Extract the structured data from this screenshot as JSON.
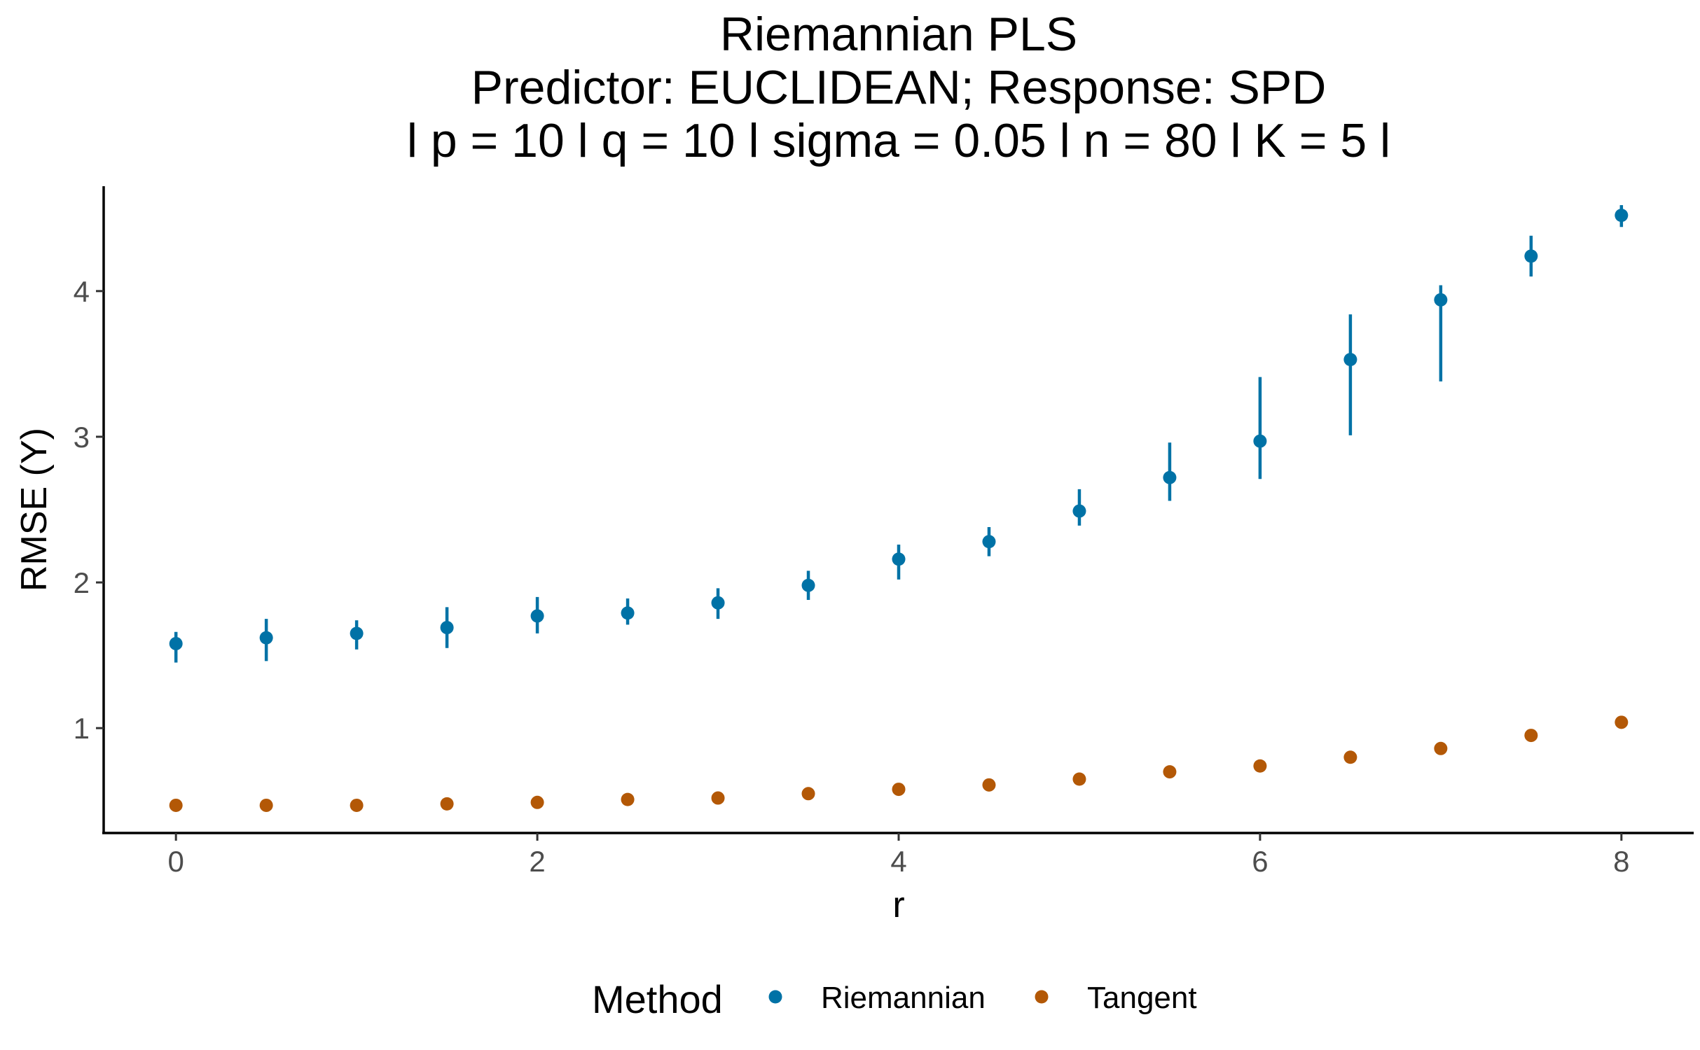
{
  "chart_data": {
    "type": "scatter",
    "title_lines": [
      "Riemannian PLS",
      "Predictor: EUCLIDEAN; Response: SPD",
      "l p = 10 l q = 10 l sigma = 0.05 l n = 80 l K = 5 l"
    ],
    "xlabel": "r",
    "ylabel": "RMSE (Y)",
    "xlim": [
      -0.4,
      8.4
    ],
    "ylim": [
      0.28,
      4.72
    ],
    "xticks": [
      0,
      2,
      4,
      6,
      8
    ],
    "yticks": [
      1,
      2,
      3,
      4
    ],
    "grid": false,
    "legend": {
      "title": "Method",
      "position": "bottom"
    },
    "series": [
      {
        "name": "Riemannian",
        "color": "#0072A6",
        "points": [
          {
            "x": 0,
            "y": 1.58,
            "lo": 1.45,
            "hi": 1.66
          },
          {
            "x": 0.5,
            "y": 1.62,
            "lo": 1.46,
            "hi": 1.75
          },
          {
            "x": 1,
            "y": 1.65,
            "lo": 1.54,
            "hi": 1.74
          },
          {
            "x": 1.5,
            "y": 1.69,
            "lo": 1.55,
            "hi": 1.83
          },
          {
            "x": 2,
            "y": 1.77,
            "lo": 1.65,
            "hi": 1.9
          },
          {
            "x": 2.5,
            "y": 1.79,
            "lo": 1.71,
            "hi": 1.89
          },
          {
            "x": 3,
            "y": 1.86,
            "lo": 1.75,
            "hi": 1.96
          },
          {
            "x": 3.5,
            "y": 1.98,
            "lo": 1.88,
            "hi": 2.08
          },
          {
            "x": 4,
            "y": 2.16,
            "lo": 2.02,
            "hi": 2.26
          },
          {
            "x": 4.5,
            "y": 2.28,
            "lo": 2.18,
            "hi": 2.38
          },
          {
            "x": 5,
            "y": 2.49,
            "lo": 2.39,
            "hi": 2.64
          },
          {
            "x": 5.5,
            "y": 2.72,
            "lo": 2.56,
            "hi": 2.96
          },
          {
            "x": 6,
            "y": 2.97,
            "lo": 2.71,
            "hi": 3.41
          },
          {
            "x": 6.5,
            "y": 3.53,
            "lo": 3.01,
            "hi": 3.84
          },
          {
            "x": 7,
            "y": 3.94,
            "lo": 3.38,
            "hi": 4.04
          },
          {
            "x": 7.5,
            "y": 4.24,
            "lo": 4.1,
            "hi": 4.38
          },
          {
            "x": 8,
            "y": 4.52,
            "lo": 4.44,
            "hi": 4.59
          }
        ]
      },
      {
        "name": "Tangent",
        "color": "#B35806",
        "points": [
          {
            "x": 0,
            "y": 0.47,
            "lo": 0.46,
            "hi": 0.48
          },
          {
            "x": 0.5,
            "y": 0.47,
            "lo": 0.46,
            "hi": 0.48
          },
          {
            "x": 1,
            "y": 0.47,
            "lo": 0.46,
            "hi": 0.49
          },
          {
            "x": 1.5,
            "y": 0.48,
            "lo": 0.47,
            "hi": 0.49
          },
          {
            "x": 2,
            "y": 0.49,
            "lo": 0.48,
            "hi": 0.51
          },
          {
            "x": 2.5,
            "y": 0.51,
            "lo": 0.5,
            "hi": 0.53
          },
          {
            "x": 3,
            "y": 0.52,
            "lo": 0.51,
            "hi": 0.54
          },
          {
            "x": 3.5,
            "y": 0.55,
            "lo": 0.54,
            "hi": 0.57
          },
          {
            "x": 4,
            "y": 0.58,
            "lo": 0.56,
            "hi": 0.6
          },
          {
            "x": 4.5,
            "y": 0.61,
            "lo": 0.59,
            "hi": 0.63
          },
          {
            "x": 5,
            "y": 0.65,
            "lo": 0.63,
            "hi": 0.67
          },
          {
            "x": 5.5,
            "y": 0.7,
            "lo": 0.68,
            "hi": 0.72
          },
          {
            "x": 6,
            "y": 0.74,
            "lo": 0.72,
            "hi": 0.76
          },
          {
            "x": 6.5,
            "y": 0.8,
            "lo": 0.78,
            "hi": 0.83
          },
          {
            "x": 7,
            "y": 0.86,
            "lo": 0.84,
            "hi": 0.88
          },
          {
            "x": 7.5,
            "y": 0.95,
            "lo": 0.92,
            "hi": 0.98
          },
          {
            "x": 8,
            "y": 1.04,
            "lo": 1.01,
            "hi": 1.07
          }
        ]
      }
    ]
  }
}
